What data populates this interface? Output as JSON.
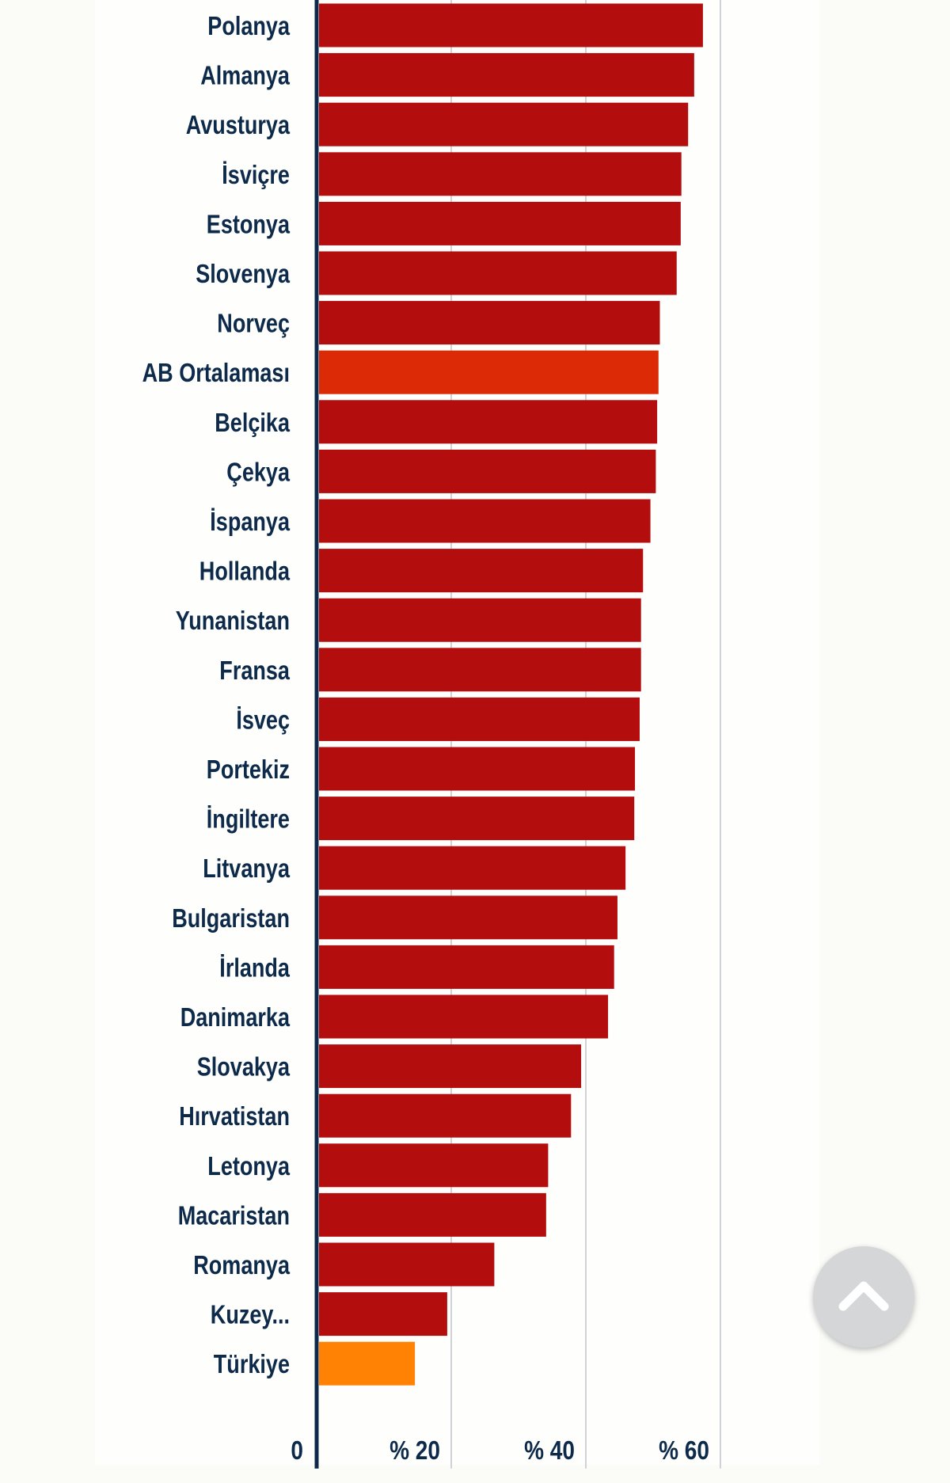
{
  "chart_data": {
    "type": "bar",
    "orientation": "horizontal",
    "categories": [
      "Polanya",
      "Almanya",
      "Avusturya",
      "İsviçre",
      "Estonya",
      "Slovenya",
      "Norveç",
      "AB Ortalaması",
      "Belçika",
      "Çekya",
      "İspanya",
      "Hollanda",
      "Yunanistan",
      "Fransa",
      "İsveç",
      "Portekiz",
      "İngiltere",
      "Litvanya",
      "Bulgaristan",
      "İrlanda",
      "Danimarka",
      "Slovakya",
      "Hırvatistan",
      "Letonya",
      "Macaristan",
      "Romanya",
      "Kuzey...",
      "Türkiye"
    ],
    "values": [
      57.4,
      56.1,
      55.2,
      54.2,
      54.1,
      53.5,
      51.0,
      50.8,
      50.6,
      50.4,
      49.6,
      48.5,
      48.2,
      48.2,
      48.0,
      47.3,
      47.2,
      45.9,
      44.7,
      44.2,
      43.3,
      39.3,
      37.8,
      34.4,
      34.1,
      26.4,
      19.4,
      14.6
    ],
    "highlight": {
      "AB Ortalaması": "#dc2a06",
      "Türkiye": "#ff8205"
    },
    "bar_color": "#b30d0e",
    "xlim": [
      0,
      60
    ],
    "x_ticks": [
      0,
      20,
      40,
      60
    ],
    "x_tick_labels": [
      "0",
      "% 20",
      "% 40",
      "% 60"
    ],
    "grid": true,
    "title": "",
    "xlabel": "",
    "ylabel": ""
  },
  "ui": {
    "scroll_top_icon": "chevron-up-icon"
  }
}
